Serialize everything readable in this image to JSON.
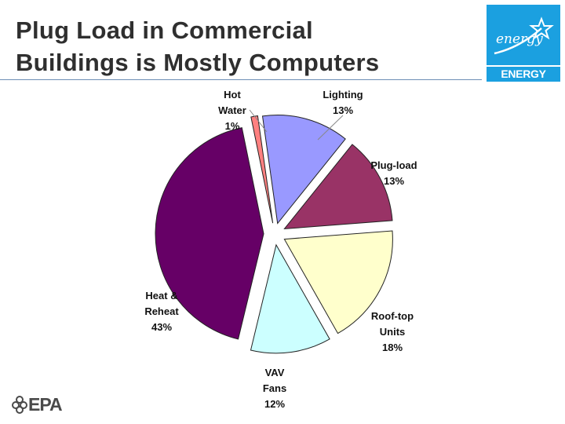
{
  "title": {
    "line1": "Plug Load in Commercial",
    "line2": "Buildings is Mostly Computers"
  },
  "logo": {
    "script": "energy",
    "label": "ENERGY STAR",
    "icon": "energy-star-icon",
    "color": "#1ba0e0"
  },
  "footer_logo": {
    "text": "EPA",
    "icon": "epa-flower-icon"
  },
  "chart_data": {
    "type": "pie",
    "start": "slightly left of top, clockwise",
    "slices": [
      {
        "name": "Lighting",
        "label_lines": [
          "Lighting"
        ],
        "value": 13,
        "pct_label": "13%",
        "color": "#9999ff"
      },
      {
        "name": "Plug-load",
        "label_lines": [
          "Plug-load"
        ],
        "value": 13,
        "pct_label": "13%",
        "color": "#993366"
      },
      {
        "name": "Roof-top Units",
        "label_lines": [
          "Roof-top",
          "Units"
        ],
        "value": 18,
        "pct_label": "18%",
        "color": "#ffffcc"
      },
      {
        "name": "VAV Fans",
        "label_lines": [
          "VAV",
          "Fans"
        ],
        "value": 12,
        "pct_label": "12%",
        "color": "#ccffff"
      },
      {
        "name": "Heat & Reheat",
        "label_lines": [
          "Heat &",
          "Reheat"
        ],
        "value": 43,
        "pct_label": "43%",
        "color": "#660066"
      },
      {
        "name": "Hot Water",
        "label_lines": [
          "Hot",
          "Water"
        ],
        "value": 1,
        "pct_label": "1%",
        "color": "#ff8080"
      }
    ]
  }
}
